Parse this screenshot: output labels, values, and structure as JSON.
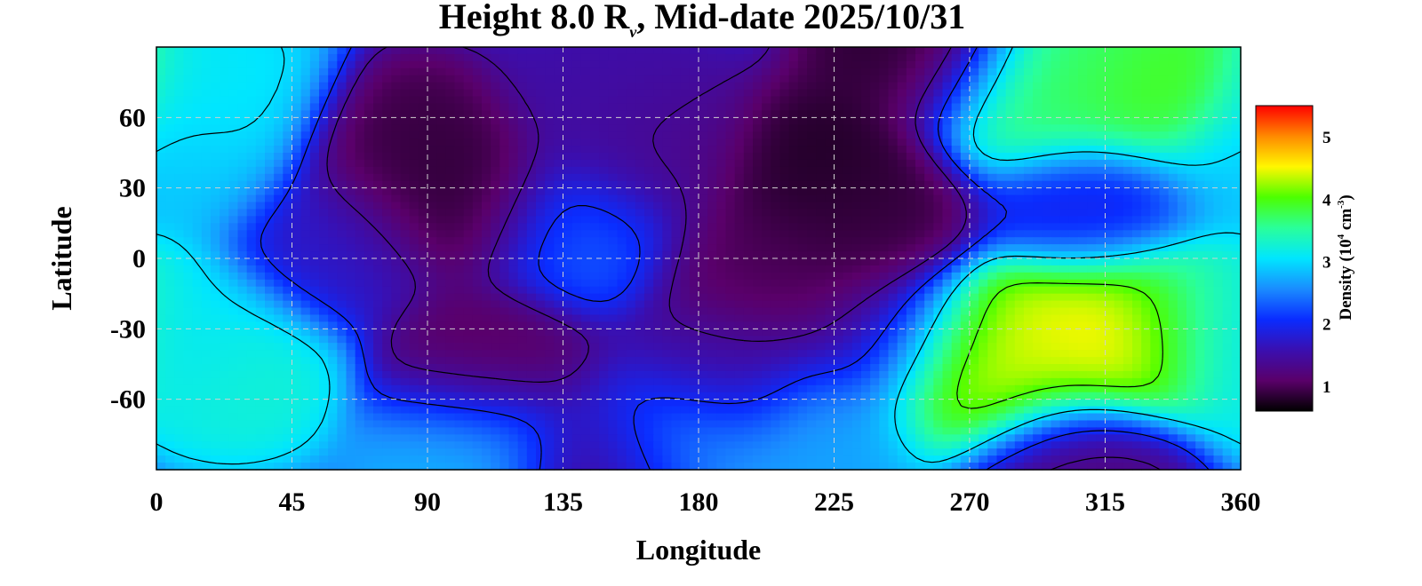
{
  "chart_data": {
    "type": "heatmap",
    "title": {
      "prefix": "Height 8.0 R",
      "subscript": "v",
      "suffix": ", Mid-date 2025/10/31"
    },
    "xlabel": "Longitude",
    "ylabel": "Latitude",
    "xlim": [
      0,
      360
    ],
    "ylim": [
      -90,
      90
    ],
    "xticks": [
      "0",
      "45",
      "90",
      "135",
      "180",
      "225",
      "270",
      "315",
      "360"
    ],
    "xtick_values": [
      0,
      45,
      90,
      135,
      180,
      225,
      270,
      315,
      360
    ],
    "yticks": [
      "60",
      "30",
      "0",
      "-30",
      "-60"
    ],
    "ytick_values": [
      60,
      30,
      0,
      -30,
      -60
    ],
    "grid": true,
    "colorbar": {
      "label": "Density (10",
      "label_exp1": "4",
      "label_mid": " cm",
      "label_exp2": "-3",
      "label_end": ")",
      "ticks": [
        "5",
        "4",
        "3",
        "2",
        "1"
      ],
      "tick_values": [
        5,
        4,
        3,
        2,
        1
      ],
      "range": [
        0.6,
        5.5
      ],
      "colormap": [
        "#000000",
        "#5a006a",
        "#3a0fb0",
        "#0a2cff",
        "#1a8cff",
        "#00e6ff",
        "#2aff9a",
        "#4cff00",
        "#fff700",
        "#ff8a00",
        "#ff0000"
      ]
    },
    "contour_levels": [
      1.4,
      2.0,
      3.0,
      4.0,
      4.7
    ],
    "features": [
      {
        "lon": 290,
        "lat": 70,
        "value": 3.8
      },
      {
        "lon": 330,
        "lat": 73,
        "value": 4.1
      },
      {
        "lon": 312,
        "lat": 82,
        "value": 3.6
      },
      {
        "lon": 20,
        "lat": 68,
        "value": 3.1
      },
      {
        "lon": 8,
        "lat": 40,
        "value": 2.9
      },
      {
        "lon": 5,
        "lat": -30,
        "value": 2.9
      },
      {
        "lon": 25,
        "lat": -45,
        "value": 3.3
      },
      {
        "lon": 318,
        "lat": -30,
        "value": 4.8
      },
      {
        "lon": 300,
        "lat": -35,
        "value": 4.4
      },
      {
        "lon": 270,
        "lat": -50,
        "value": 4.7
      },
      {
        "lon": 278,
        "lat": -42,
        "value": 4.4
      },
      {
        "lon": 345,
        "lat": -25,
        "value": 3.6
      },
      {
        "lon": 105,
        "lat": -80,
        "value": 2.8
      },
      {
        "lon": 175,
        "lat": -78,
        "value": 2.8
      },
      {
        "lon": 225,
        "lat": -76,
        "value": 2.7
      },
      {
        "lon": 100,
        "lat": 25,
        "value": 0.8
      },
      {
        "lon": 85,
        "lat": 45,
        "value": 0.9
      },
      {
        "lon": 220,
        "lat": 35,
        "value": 0.75
      },
      {
        "lon": 235,
        "lat": 15,
        "value": 0.9
      },
      {
        "lon": 200,
        "lat": -3,
        "value": 1.0
      },
      {
        "lon": 165,
        "lat": 45,
        "value": 1.3
      },
      {
        "lon": 150,
        "lat": 65,
        "value": 1.5
      },
      {
        "lon": 110,
        "lat": -45,
        "value": 1.0
      },
      {
        "lon": 185,
        "lat": -48,
        "value": 1.4
      },
      {
        "lon": 245,
        "lat": -35,
        "value": 1.3
      },
      {
        "lon": 255,
        "lat": 88,
        "value": 0.8
      },
      {
        "lon": 140,
        "lat": 12,
        "value": 2.3
      },
      {
        "lon": 60,
        "lat": 5,
        "value": 1.7
      },
      {
        "lon": 310,
        "lat": 20,
        "value": 1.9
      },
      {
        "lon": 300,
        "lat": -85,
        "value": 1.2
      },
      {
        "lon": 150,
        "lat": -88,
        "value": 1.3
      }
    ],
    "baseline_value": 2.1
  }
}
